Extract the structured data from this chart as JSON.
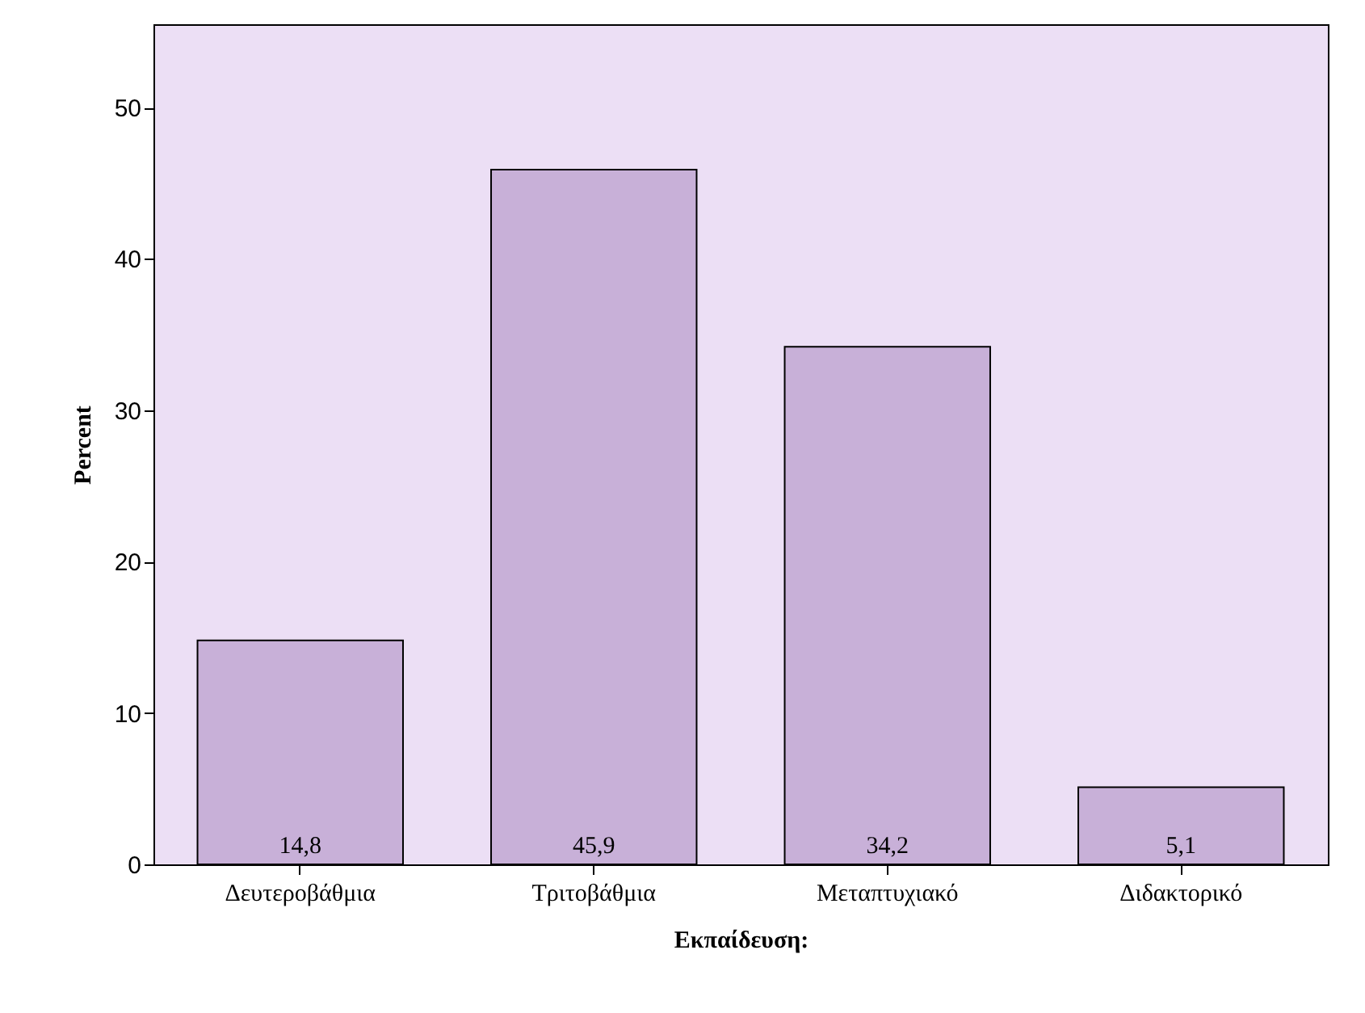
{
  "chart_data": {
    "type": "bar",
    "xlabel": "Εκπαίδευση:",
    "ylabel": "Percent",
    "categories": [
      "Δευτεροβάθμια",
      "Τριτοβάθμια",
      "Μεταπτυχιακό",
      "Διδακτορικό"
    ],
    "values": [
      14.8,
      45.9,
      34.2,
      5.1
    ],
    "value_labels": [
      "14,8",
      "45,9",
      "34,2",
      "5,1"
    ],
    "color": "#c8b0d8",
    "ylim": [
      0,
      55.5
    ],
    "yticks": [
      0,
      10,
      20,
      30,
      40,
      50
    ],
    "grid": false
  }
}
